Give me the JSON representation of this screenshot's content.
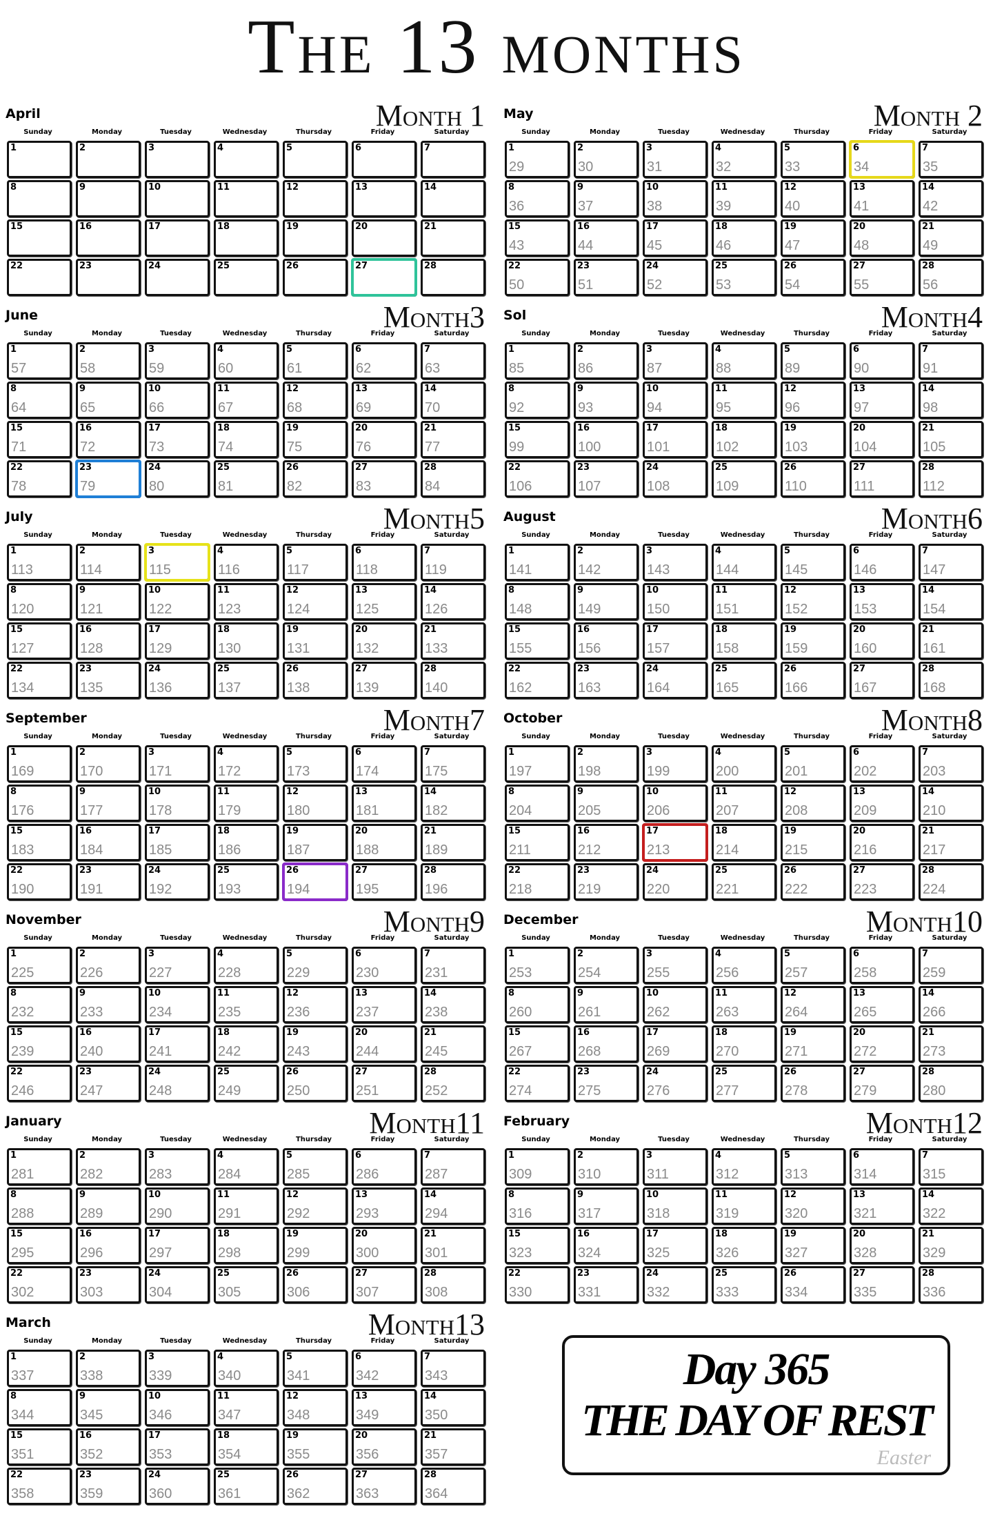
{
  "title": "The 13 months",
  "weekdays": [
    "Sunday",
    "Monday",
    "Tuesday",
    "Wednesday",
    "Thursday",
    "Friday",
    "Saturday"
  ],
  "dates": [
    1,
    2,
    3,
    4,
    5,
    6,
    7,
    8,
    9,
    10,
    11,
    12,
    13,
    14,
    15,
    16,
    17,
    18,
    19,
    20,
    21,
    22,
    23,
    24,
    25,
    26,
    27,
    28
  ],
  "months": [
    {
      "name": "April",
      "label": "Month 1",
      "highlight": {
        "date": 27,
        "color": "#2fc39a"
      }
    },
    {
      "name": "May",
      "label": "Month 2",
      "days": [
        29,
        30,
        31,
        32,
        33,
        34,
        35,
        36,
        37,
        38,
        39,
        40,
        41,
        42,
        43,
        44,
        45,
        46,
        47,
        48,
        49,
        50,
        51,
        52,
        53,
        54,
        55,
        56
      ],
      "highlight": {
        "date": 6,
        "color": "#e6d81a"
      }
    },
    {
      "name": "June",
      "label": "Month3",
      "days": [
        57,
        58,
        59,
        60,
        61,
        62,
        63,
        64,
        65,
        66,
        67,
        68,
        69,
        70,
        71,
        72,
        73,
        74,
        75,
        76,
        77,
        78,
        79,
        80,
        81,
        82,
        83,
        84
      ],
      "highlight": {
        "date": 23,
        "color": "#1f7fd6"
      }
    },
    {
      "name": "Sol",
      "label": "Month4",
      "days": [
        85,
        86,
        87,
        88,
        89,
        90,
        91,
        92,
        93,
        94,
        95,
        96,
        97,
        98,
        99,
        100,
        101,
        102,
        103,
        104,
        105,
        106,
        107,
        108,
        109,
        110,
        111,
        112
      ]
    },
    {
      "name": "July",
      "label": "Month5",
      "days": [
        113,
        114,
        115,
        116,
        117,
        118,
        119,
        120,
        121,
        122,
        123,
        124,
        125,
        126,
        127,
        128,
        129,
        130,
        131,
        132,
        133,
        134,
        135,
        136,
        137,
        138,
        139,
        140
      ],
      "highlight": {
        "date": 3,
        "color": "#e6e21a"
      }
    },
    {
      "name": "August",
      "label": "Month6",
      "days": [
        141,
        142,
        143,
        144,
        145,
        146,
        147,
        148,
        149,
        150,
        151,
        152,
        153,
        154,
        155,
        156,
        157,
        158,
        159,
        160,
        161,
        162,
        163,
        164,
        165,
        166,
        167,
        168
      ]
    },
    {
      "name": "September",
      "label": "Month7",
      "days": [
        169,
        170,
        171,
        172,
        173,
        174,
        175,
        176,
        177,
        178,
        179,
        180,
        181,
        182,
        183,
        184,
        185,
        186,
        187,
        188,
        189,
        190,
        191,
        192,
        193,
        194,
        195,
        196
      ],
      "highlight": {
        "date": 26,
        "color": "#8a2bc9"
      }
    },
    {
      "name": "October",
      "label": "Month8",
      "days": [
        197,
        198,
        199,
        200,
        201,
        202,
        203,
        204,
        205,
        206,
        207,
        208,
        209,
        210,
        211,
        212,
        213,
        214,
        215,
        216,
        217,
        218,
        219,
        220,
        221,
        222,
        223,
        224
      ],
      "highlight": {
        "date": 17,
        "color": "#c41e1e"
      }
    },
    {
      "name": "November",
      "label": "Month9",
      "days": [
        225,
        226,
        227,
        228,
        229,
        230,
        231,
        232,
        233,
        234,
        235,
        236,
        237,
        238,
        239,
        240,
        241,
        242,
        243,
        244,
        245,
        246,
        247,
        248,
        249,
        250,
        251,
        252
      ]
    },
    {
      "name": "December",
      "label": "Month10",
      "days": [
        253,
        254,
        255,
        256,
        257,
        258,
        259,
        260,
        261,
        262,
        263,
        264,
        265,
        266,
        267,
        268,
        269,
        270,
        271,
        272,
        273,
        274,
        275,
        276,
        277,
        278,
        279,
        280
      ]
    },
    {
      "name": "January",
      "label": "Month11",
      "days": [
        281,
        282,
        283,
        284,
        285,
        286,
        287,
        288,
        289,
        290,
        291,
        292,
        293,
        294,
        295,
        296,
        297,
        298,
        299,
        300,
        301,
        302,
        303,
        304,
        305,
        306,
        307,
        308
      ]
    },
    {
      "name": "February",
      "label": "Month12",
      "days": [
        309,
        310,
        311,
        312,
        313,
        314,
        315,
        316,
        317,
        318,
        319,
        320,
        321,
        322,
        323,
        324,
        325,
        326,
        327,
        328,
        329,
        330,
        331,
        332,
        333,
        334,
        335,
        336
      ]
    },
    {
      "name": "March",
      "label": "Month13",
      "days": [
        337,
        338,
        339,
        340,
        341,
        342,
        343,
        344,
        345,
        346,
        347,
        348,
        349,
        350,
        351,
        352,
        353,
        354,
        355,
        356,
        357,
        358,
        359,
        360,
        361,
        362,
        363,
        364
      ]
    }
  ],
  "rest": {
    "heading": "Day 365",
    "text": "THE DAY OF REST",
    "note": "Easter"
  }
}
